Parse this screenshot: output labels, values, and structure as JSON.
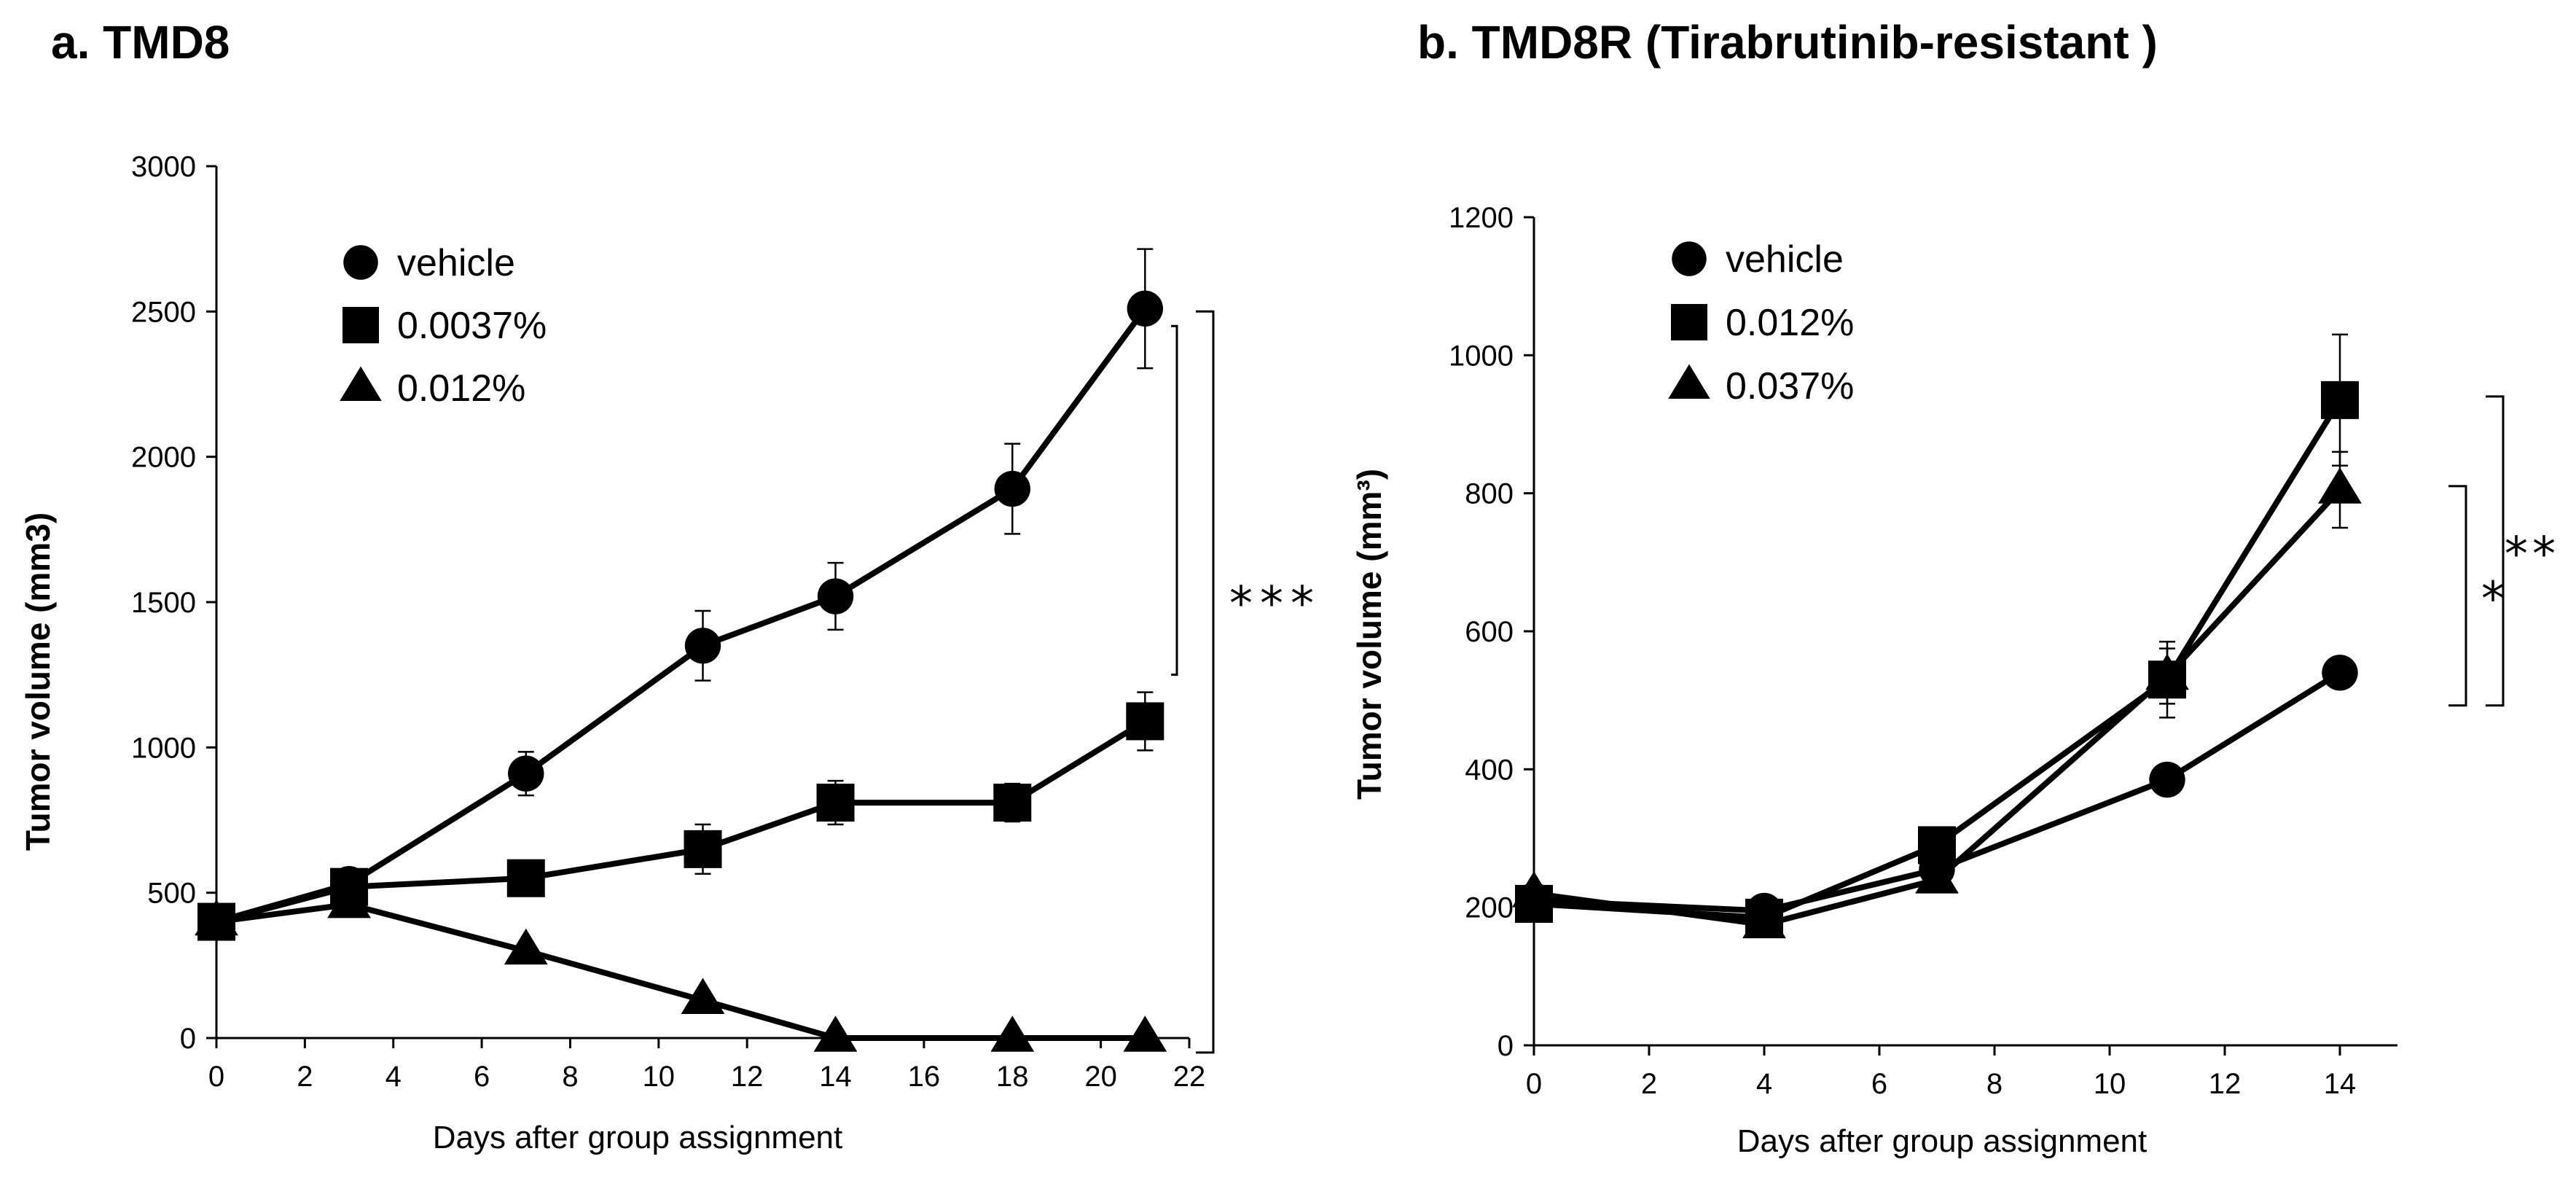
{
  "chart_data": [
    {
      "type": "line",
      "title": "a. TMD8",
      "xlabel": "Days after group assignment",
      "ylabel": "Tumor volume (mm3)",
      "xlim": [
        0,
        22
      ],
      "ylim": [
        0,
        3000
      ],
      "xticks": [
        0,
        2,
        4,
        6,
        8,
        10,
        12,
        14,
        16,
        18,
        20,
        22
      ],
      "yticks": [
        0,
        500,
        1000,
        1500,
        2000,
        2500,
        3000
      ],
      "grid": false,
      "series": [
        {
          "name": "vehicle",
          "marker": "circle",
          "x": [
            0,
            3,
            7,
            11,
            14,
            18,
            21
          ],
          "y": [
            400,
            530,
            910,
            1350,
            1520,
            1890,
            2510
          ],
          "err": [
            0,
            0,
            75,
            120,
            115,
            155,
            205
          ]
        },
        {
          "name": "0.0037%",
          "marker": "square",
          "x": [
            0,
            3,
            7,
            11,
            14,
            18,
            21
          ],
          "y": [
            400,
            520,
            550,
            650,
            810,
            810,
            1090
          ],
          "err": [
            0,
            0,
            0,
            85,
            75,
            65,
            100
          ]
        },
        {
          "name": "0.012%",
          "marker": "triangle",
          "x": [
            0,
            3,
            7,
            11,
            14,
            18,
            21
          ],
          "y": [
            400,
            460,
            300,
            130,
            0,
            0,
            0
          ],
          "err": [
            0,
            0,
            0,
            0,
            0,
            0,
            0
          ]
        }
      ],
      "significance": [
        {
          "label": "***",
          "from": "0.012%",
          "to": "vehicle"
        }
      ]
    },
    {
      "type": "line",
      "title": "b. TMD8R (Tirabrutinib-resistant )",
      "xlabel": "Days after group assignment",
      "ylabel": "Tumor volume (mm³)",
      "xlim": [
        0,
        15
      ],
      "ylim": [
        0,
        1200
      ],
      "xticks": [
        0,
        2,
        4,
        6,
        8,
        10,
        12,
        14
      ],
      "yticks": [
        0,
        200,
        400,
        600,
        800,
        1000,
        1200
      ],
      "grid": false,
      "series": [
        {
          "name": "vehicle",
          "marker": "circle",
          "x": [
            0,
            4,
            7,
            11,
            14
          ],
          "y": [
            210,
            195,
            255,
            385,
            540
          ],
          "err": [
            0,
            0,
            0,
            0,
            18
          ]
        },
        {
          "name": "0.012%",
          "marker": "square",
          "x": [
            0,
            4,
            7,
            11,
            14
          ],
          "y": [
            205,
            185,
            290,
            530,
            935
          ],
          "err": [
            0,
            0,
            0,
            55,
            95
          ]
        },
        {
          "name": "0.037%",
          "marker": "triangle",
          "x": [
            0,
            4,
            7,
            11,
            14
          ],
          "y": [
            220,
            175,
            240,
            535,
            805
          ],
          "err": [
            0,
            0,
            0,
            40,
            55
          ]
        }
      ],
      "significance": [
        {
          "label": "*",
          "from": "vehicle",
          "to": "0.037%"
        },
        {
          "label": "**",
          "from": "vehicle",
          "to": "0.012%"
        }
      ]
    }
  ]
}
